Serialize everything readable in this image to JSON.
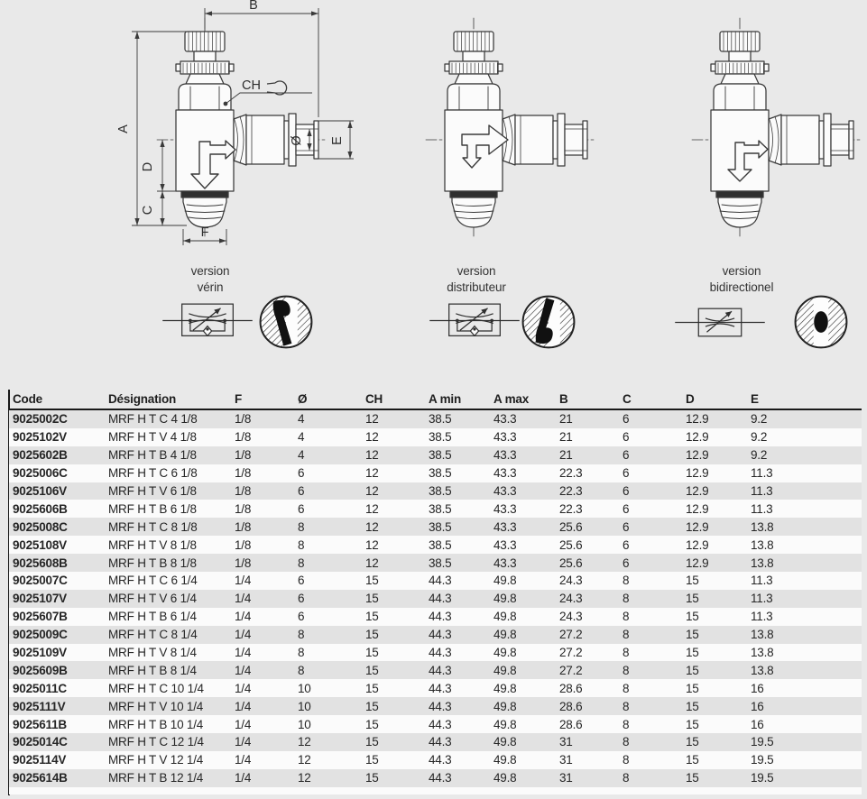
{
  "page_background": "#e9e9e9",
  "drawings": [
    {
      "id": "verin",
      "version_label": [
        "version",
        "vérin"
      ],
      "dimensioned": true,
      "flow": "big-down-small-right",
      "symbol": "flow-control-with-check-valve",
      "section": "seat-top"
    },
    {
      "id": "distributeur",
      "version_label": [
        "version",
        "distributeur"
      ],
      "dimensioned": false,
      "flow": "big-right-small-down",
      "symbol": "flow-control-with-check-valve",
      "section": "seat-bottom"
    },
    {
      "id": "bidirectionel",
      "version_label": [
        "version",
        "bidirectionel"
      ],
      "dimensioned": false,
      "flow": "dual-small",
      "symbol": "flow-control-plain",
      "section": "ball-center"
    }
  ],
  "dimension_labels": {
    "A": "A",
    "B": "B",
    "C": "C",
    "D": "D",
    "E": "E",
    "F": "F",
    "CH": "CH",
    "diameter": "Ø"
  },
  "colors": {
    "line": "#3a3a3a",
    "dark_fill": "#2f2f2f",
    "row_gray": "#e2e2e2",
    "row_white": "#fbfbfb",
    "rule": "#1a1a1a"
  },
  "table": {
    "columns": [
      "Code",
      "Désignation",
      "F",
      "Ø",
      "CH",
      "A min",
      "A max",
      "B",
      "C",
      "D",
      "E"
    ],
    "rows": [
      [
        "9025002C",
        "MRF H T C 4 1/8",
        "1/8",
        "4",
        "12",
        "38.5",
        "43.3",
        "21",
        "6",
        "12.9",
        "9.2"
      ],
      [
        "9025102V",
        "MRF H T V 4 1/8",
        "1/8",
        "4",
        "12",
        "38.5",
        "43.3",
        "21",
        "6",
        "12.9",
        "9.2"
      ],
      [
        "9025602B",
        "MRF H T B 4 1/8",
        "1/8",
        "4",
        "12",
        "38.5",
        "43.3",
        "21",
        "6",
        "12.9",
        "9.2"
      ],
      [
        "9025006C",
        "MRF H T C 6 1/8",
        "1/8",
        "6",
        "12",
        "38.5",
        "43.3",
        "22.3",
        "6",
        "12.9",
        "11.3"
      ],
      [
        "9025106V",
        "MRF H T V 6 1/8",
        "1/8",
        "6",
        "12",
        "38.5",
        "43.3",
        "22.3",
        "6",
        "12.9",
        "11.3"
      ],
      [
        "9025606B",
        "MRF H T B 6 1/8",
        "1/8",
        "6",
        "12",
        "38.5",
        "43.3",
        "22.3",
        "6",
        "12.9",
        "11.3"
      ],
      [
        "9025008C",
        "MRF H T C 8 1/8",
        "1/8",
        "8",
        "12",
        "38.5",
        "43.3",
        "25.6",
        "6",
        "12.9",
        "13.8"
      ],
      [
        "9025108V",
        "MRF H T V 8 1/8",
        "1/8",
        "8",
        "12",
        "38.5",
        "43.3",
        "25.6",
        "6",
        "12.9",
        "13.8"
      ],
      [
        "9025608B",
        "MRF H T B 8 1/8",
        "1/8",
        "8",
        "12",
        "38.5",
        "43.3",
        "25.6",
        "6",
        "12.9",
        "13.8"
      ],
      [
        "9025007C",
        "MRF H T C 6 1/4",
        "1/4",
        "6",
        "15",
        "44.3",
        "49.8",
        "24.3",
        "8",
        "15",
        "11.3"
      ],
      [
        "9025107V",
        "MRF H T V 6 1/4",
        "1/4",
        "6",
        "15",
        "44.3",
        "49.8",
        "24.3",
        "8",
        "15",
        "11.3"
      ],
      [
        "9025607B",
        "MRF H T B 6 1/4",
        "1/4",
        "6",
        "15",
        "44.3",
        "49.8",
        "24.3",
        "8",
        "15",
        "11.3"
      ],
      [
        "9025009C",
        "MRF H T C 8 1/4",
        "1/4",
        "8",
        "15",
        "44.3",
        "49.8",
        "27.2",
        "8",
        "15",
        "13.8"
      ],
      [
        "9025109V",
        "MRF H T V 8 1/4",
        "1/4",
        "8",
        "15",
        "44.3",
        "49.8",
        "27.2",
        "8",
        "15",
        "13.8"
      ],
      [
        "9025609B",
        "MRF H T B 8 1/4",
        "1/4",
        "8",
        "15",
        "44.3",
        "49.8",
        "27.2",
        "8",
        "15",
        "13.8"
      ],
      [
        "9025011C",
        "MRF H T C 10 1/4",
        "1/4",
        "10",
        "15",
        "44.3",
        "49.8",
        "28.6",
        "8",
        "15",
        "16"
      ],
      [
        "9025111V",
        "MRF H T V 10 1/4",
        "1/4",
        "10",
        "15",
        "44.3",
        "49.8",
        "28.6",
        "8",
        "15",
        "16"
      ],
      [
        "9025611B",
        "MRF H T B 10 1/4",
        "1/4",
        "10",
        "15",
        "44.3",
        "49.8",
        "28.6",
        "8",
        "15",
        "16"
      ],
      [
        "9025014C",
        "MRF H T C 12 1/4",
        "1/4",
        "12",
        "15",
        "44.3",
        "49.8",
        "31",
        "8",
        "15",
        "19.5"
      ],
      [
        "9025114V",
        "MRF H T V 12 1/4",
        "1/4",
        "12",
        "15",
        "44.3",
        "49.8",
        "31",
        "8",
        "15",
        "19.5"
      ],
      [
        "9025614B",
        "MRF H T B 12 1/4",
        "1/4",
        "12",
        "15",
        "44.3",
        "49.8",
        "31",
        "8",
        "15",
        "19.5"
      ]
    ]
  }
}
